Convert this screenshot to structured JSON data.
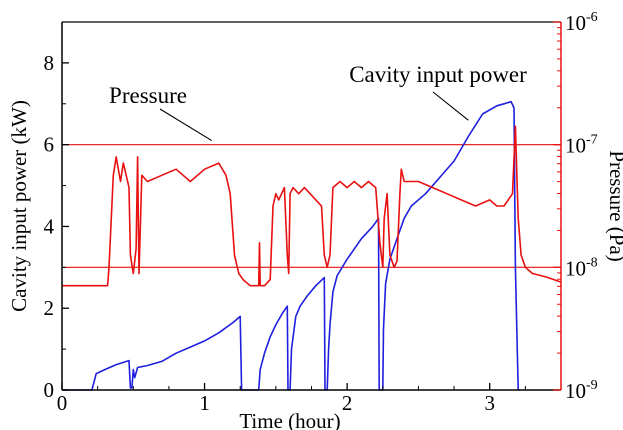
{
  "chart_data": {
    "type": "line",
    "xlabel": "Time (hour)",
    "ylabel": "Cavity input power (kW)",
    "y2label": "Pressure (Pa)",
    "xlim": [
      0,
      3.5
    ],
    "ylim": [
      0,
      9
    ],
    "y2lim_log10": [
      -9,
      -6
    ],
    "y2scale": "log",
    "xticks": [
      0,
      1,
      2,
      3
    ],
    "yticks": [
      0,
      2,
      4,
      6,
      8
    ],
    "y2ticks": [
      {
        "exp": -9,
        "label": "10",
        "sup": "-9"
      },
      {
        "exp": -8,
        "label": "10",
        "sup": "-8"
      },
      {
        "exp": -7,
        "label": "10",
        "sup": "-7"
      },
      {
        "exp": -6,
        "label": "10",
        "sup": "-6"
      }
    ],
    "grid": false,
    "hlines_pressure_pa": [
      1e-07,
      1e-08
    ],
    "annotations": [
      {
        "text": "Pressure",
        "series": "pressure",
        "x": 1.05,
        "y": 6.1
      },
      {
        "text": "Cavity input power",
        "series": "power",
        "x": 2.85,
        "y": 6.6
      }
    ],
    "series": [
      {
        "key": "power",
        "color": "#1f1fe0",
        "axis": "left",
        "points": [
          [
            0,
            0
          ],
          [
            0.21,
            0
          ],
          [
            0.24,
            0.4
          ],
          [
            0.3,
            0.5
          ],
          [
            0.38,
            0.62
          ],
          [
            0.47,
            0.72
          ],
          [
            0.48,
            0.05
          ],
          [
            0.49,
            0.05
          ],
          [
            0.5,
            0.5
          ],
          [
            0.51,
            0.3
          ],
          [
            0.53,
            0.55
          ],
          [
            0.6,
            0.6
          ],
          [
            0.7,
            0.7
          ],
          [
            0.8,
            0.9
          ],
          [
            0.9,
            1.05
          ],
          [
            1.0,
            1.2
          ],
          [
            1.1,
            1.4
          ],
          [
            1.2,
            1.65
          ],
          [
            1.25,
            1.8
          ],
          [
            1.26,
            0.0
          ],
          [
            1.38,
            0.0
          ],
          [
            1.39,
            0.5
          ],
          [
            1.42,
            0.9
          ],
          [
            1.46,
            1.3
          ],
          [
            1.5,
            1.6
          ],
          [
            1.55,
            1.9
          ],
          [
            1.58,
            2.05
          ],
          [
            1.585,
            0.0
          ],
          [
            1.6,
            0.0
          ],
          [
            1.61,
            1.0
          ],
          [
            1.64,
            1.8
          ],
          [
            1.67,
            2.05
          ],
          [
            1.72,
            2.3
          ],
          [
            1.78,
            2.55
          ],
          [
            1.84,
            2.75
          ],
          [
            1.845,
            0.0
          ],
          [
            1.86,
            0.0
          ],
          [
            1.87,
            1.0
          ],
          [
            1.88,
            1.6
          ],
          [
            1.9,
            2.4
          ],
          [
            1.93,
            2.8
          ],
          [
            2.0,
            3.2
          ],
          [
            2.1,
            3.7
          ],
          [
            2.18,
            4.0
          ],
          [
            2.22,
            4.2
          ],
          [
            2.225,
            0.0
          ],
          [
            2.25,
            0.0
          ],
          [
            2.255,
            1.5
          ],
          [
            2.27,
            2.6
          ],
          [
            2.3,
            3.2
          ],
          [
            2.35,
            3.7
          ],
          [
            2.4,
            4.2
          ],
          [
            2.45,
            4.5
          ],
          [
            2.55,
            4.8
          ],
          [
            2.65,
            5.2
          ],
          [
            2.75,
            5.6
          ],
          [
            2.85,
            6.2
          ],
          [
            2.95,
            6.75
          ],
          [
            3.05,
            6.95
          ],
          [
            3.1,
            7.0
          ],
          [
            3.15,
            7.05
          ],
          [
            3.17,
            6.9
          ],
          [
            3.18,
            3.0
          ],
          [
            3.2,
            0.0
          ],
          [
            3.21,
            0.0
          ]
        ]
      },
      {
        "key": "pressure",
        "color": "#e81010",
        "axis": "right",
        "points": [
          [
            0,
            -8.15
          ],
          [
            0.32,
            -8.15
          ],
          [
            0.33,
            -8.0
          ],
          [
            0.36,
            -7.25
          ],
          [
            0.38,
            -7.1
          ],
          [
            0.41,
            -7.3
          ],
          [
            0.43,
            -7.15
          ],
          [
            0.45,
            -7.25
          ],
          [
            0.47,
            -7.35
          ],
          [
            0.48,
            -7.9
          ],
          [
            0.5,
            -8.05
          ],
          [
            0.52,
            -7.85
          ],
          [
            0.53,
            -7.1
          ],
          [
            0.54,
            -8.05
          ],
          [
            0.56,
            -7.25
          ],
          [
            0.6,
            -7.3
          ],
          [
            0.7,
            -7.25
          ],
          [
            0.8,
            -7.2
          ],
          [
            0.9,
            -7.3
          ],
          [
            1.0,
            -7.2
          ],
          [
            1.1,
            -7.15
          ],
          [
            1.15,
            -7.25
          ],
          [
            1.18,
            -7.4
          ],
          [
            1.21,
            -7.9
          ],
          [
            1.24,
            -8.05
          ],
          [
            1.27,
            -8.1
          ],
          [
            1.32,
            -8.15
          ],
          [
            1.38,
            -8.15
          ],
          [
            1.385,
            -7.8
          ],
          [
            1.39,
            -8.15
          ],
          [
            1.42,
            -8.15
          ],
          [
            1.46,
            -8.1
          ],
          [
            1.48,
            -7.5
          ],
          [
            1.5,
            -7.4
          ],
          [
            1.52,
            -7.45
          ],
          [
            1.54,
            -7.4
          ],
          [
            1.56,
            -7.35
          ],
          [
            1.58,
            -7.9
          ],
          [
            1.59,
            -8.05
          ],
          [
            1.6,
            -7.4
          ],
          [
            1.62,
            -7.35
          ],
          [
            1.66,
            -7.4
          ],
          [
            1.7,
            -7.35
          ],
          [
            1.74,
            -7.4
          ],
          [
            1.78,
            -7.45
          ],
          [
            1.82,
            -7.5
          ],
          [
            1.84,
            -7.9
          ],
          [
            1.86,
            -8.0
          ],
          [
            1.88,
            -7.9
          ],
          [
            1.9,
            -7.35
          ],
          [
            1.95,
            -7.3
          ],
          [
            2.0,
            -7.35
          ],
          [
            2.05,
            -7.3
          ],
          [
            2.1,
            -7.35
          ],
          [
            2.15,
            -7.3
          ],
          [
            2.2,
            -7.35
          ],
          [
            2.23,
            -7.8
          ],
          [
            2.25,
            -8.0
          ],
          [
            2.26,
            -7.6
          ],
          [
            2.28,
            -7.4
          ],
          [
            2.3,
            -7.9
          ],
          [
            2.33,
            -8.0
          ],
          [
            2.35,
            -7.95
          ],
          [
            2.37,
            -7.4
          ],
          [
            2.38,
            -7.2
          ],
          [
            2.4,
            -7.3
          ],
          [
            2.5,
            -7.3
          ],
          [
            2.6,
            -7.35
          ],
          [
            2.7,
            -7.4
          ],
          [
            2.8,
            -7.45
          ],
          [
            2.9,
            -7.5
          ],
          [
            3.0,
            -7.45
          ],
          [
            3.05,
            -7.5
          ],
          [
            3.1,
            -7.5
          ],
          [
            3.13,
            -7.45
          ],
          [
            3.16,
            -7.4
          ],
          [
            3.18,
            -6.85
          ],
          [
            3.2,
            -7.6
          ],
          [
            3.22,
            -7.9
          ],
          [
            3.25,
            -8.0
          ],
          [
            3.3,
            -8.05
          ],
          [
            3.4,
            -8.08
          ],
          [
            3.5,
            -8.12
          ]
        ]
      }
    ]
  }
}
